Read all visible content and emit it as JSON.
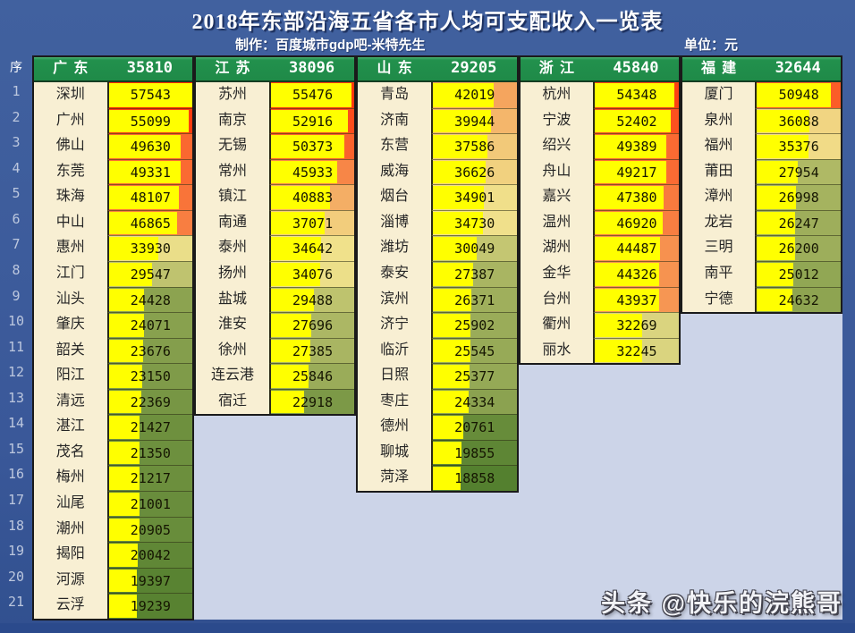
{
  "title": "2018年东部沿海五省各市人均可支配收入一览表",
  "credit": "制作：百度城市gdp吧-米特先生",
  "unit_label": "单位：元",
  "seq_header": "序",
  "watermark": "头条 @快乐的浣熊哥",
  "colors": {
    "page_bg": "#3a5899",
    "page_bg_dark": "#2b4a8c",
    "sheet_bg": "#ccd4e8",
    "header_green": "#22914d",
    "header_text": "#ffffff",
    "name_cell_bg": "#f8efd3",
    "block_border": "#1a1a1a",
    "bar_yellow": "#ffff00",
    "scale_low": "#54802f",
    "scale_mid": "#f0e28c",
    "scale_high": "#ff2800",
    "row_number_text": "#bcc7de"
  },
  "chart_data": {
    "type": "table",
    "title": "2018年东部沿海五省各市人均可支配收入一览表",
    "unit": "元",
    "scale": {
      "min": 18858,
      "mid": 34500,
      "max": 57543
    },
    "provinces": [
      {
        "name": "广东",
        "average": 35810,
        "cities": [
          {
            "name": "深圳",
            "value": 57543
          },
          {
            "name": "广州",
            "value": 55099
          },
          {
            "name": "佛山",
            "value": 49630
          },
          {
            "name": "东莞",
            "value": 49331
          },
          {
            "name": "珠海",
            "value": 48107
          },
          {
            "name": "中山",
            "value": 46865
          },
          {
            "name": "惠州",
            "value": 33930
          },
          {
            "name": "江门",
            "value": 29547
          },
          {
            "name": "汕头",
            "value": 24428
          },
          {
            "name": "肇庆",
            "value": 24071
          },
          {
            "name": "韶关",
            "value": 23676
          },
          {
            "name": "阳江",
            "value": 23150
          },
          {
            "name": "清远",
            "value": 22369
          },
          {
            "name": "湛江",
            "value": 21427
          },
          {
            "name": "茂名",
            "value": 21350
          },
          {
            "name": "梅州",
            "value": 21217
          },
          {
            "name": "汕尾",
            "value": 21001
          },
          {
            "name": "潮州",
            "value": 20905
          },
          {
            "name": "揭阳",
            "value": 20042
          },
          {
            "name": "河源",
            "value": 19397
          },
          {
            "name": "云浮",
            "value": 19239
          }
        ]
      },
      {
        "name": "江苏",
        "average": 38096,
        "cities": [
          {
            "name": "苏州",
            "value": 55476
          },
          {
            "name": "南京",
            "value": 52916
          },
          {
            "name": "无锡",
            "value": 50373
          },
          {
            "name": "常州",
            "value": 45933
          },
          {
            "name": "镇江",
            "value": 40883
          },
          {
            "name": "南通",
            "value": 37071
          },
          {
            "name": "泰州",
            "value": 34642
          },
          {
            "name": "扬州",
            "value": 34076
          },
          {
            "name": "盐城",
            "value": 29488
          },
          {
            "name": "淮安",
            "value": 27696
          },
          {
            "name": "徐州",
            "value": 27385
          },
          {
            "name": "连云港",
            "value": 25846
          },
          {
            "name": "宿迁",
            "value": 22918
          }
        ]
      },
      {
        "name": "山东",
        "average": 29205,
        "cities": [
          {
            "name": "青岛",
            "value": 42019
          },
          {
            "name": "济南",
            "value": 39944
          },
          {
            "name": "东营",
            "value": 37586
          },
          {
            "name": "威海",
            "value": 36626
          },
          {
            "name": "烟台",
            "value": 34901
          },
          {
            "name": "淄博",
            "value": 34730
          },
          {
            "name": "潍坊",
            "value": 30049
          },
          {
            "name": "泰安",
            "value": 27387
          },
          {
            "name": "滨州",
            "value": 26371
          },
          {
            "name": "济宁",
            "value": 25902
          },
          {
            "name": "临沂",
            "value": 25545
          },
          {
            "name": "日照",
            "value": 25377
          },
          {
            "name": "枣庄",
            "value": 24334
          },
          {
            "name": "德州",
            "value": 20761
          },
          {
            "name": "聊城",
            "value": 19855
          },
          {
            "name": "菏泽",
            "value": 18858
          }
        ]
      },
      {
        "name": "浙江",
        "average": 45840,
        "cities": [
          {
            "name": "杭州",
            "value": 54348
          },
          {
            "name": "宁波",
            "value": 52402
          },
          {
            "name": "绍兴",
            "value": 49389
          },
          {
            "name": "舟山",
            "value": 49217
          },
          {
            "name": "嘉兴",
            "value": 47380
          },
          {
            "name": "温州",
            "value": 46920
          },
          {
            "name": "湖州",
            "value": 44487
          },
          {
            "name": "金华",
            "value": 44326
          },
          {
            "name": "台州",
            "value": 43937
          },
          {
            "name": "衢州",
            "value": 32269
          },
          {
            "name": "丽水",
            "value": 32245
          }
        ]
      },
      {
        "name": "福建",
        "average": 32644,
        "cities": [
          {
            "name": "厦门",
            "value": 50948
          },
          {
            "name": "泉州",
            "value": 36088
          },
          {
            "name": "福州",
            "value": 35376
          },
          {
            "name": "莆田",
            "value": 27954
          },
          {
            "name": "漳州",
            "value": 26998
          },
          {
            "name": "龙岩",
            "value": 26247
          },
          {
            "name": "三明",
            "value": 26200
          },
          {
            "name": "南平",
            "value": 25012
          },
          {
            "name": "宁德",
            "value": 24632
          }
        ]
      }
    ]
  }
}
